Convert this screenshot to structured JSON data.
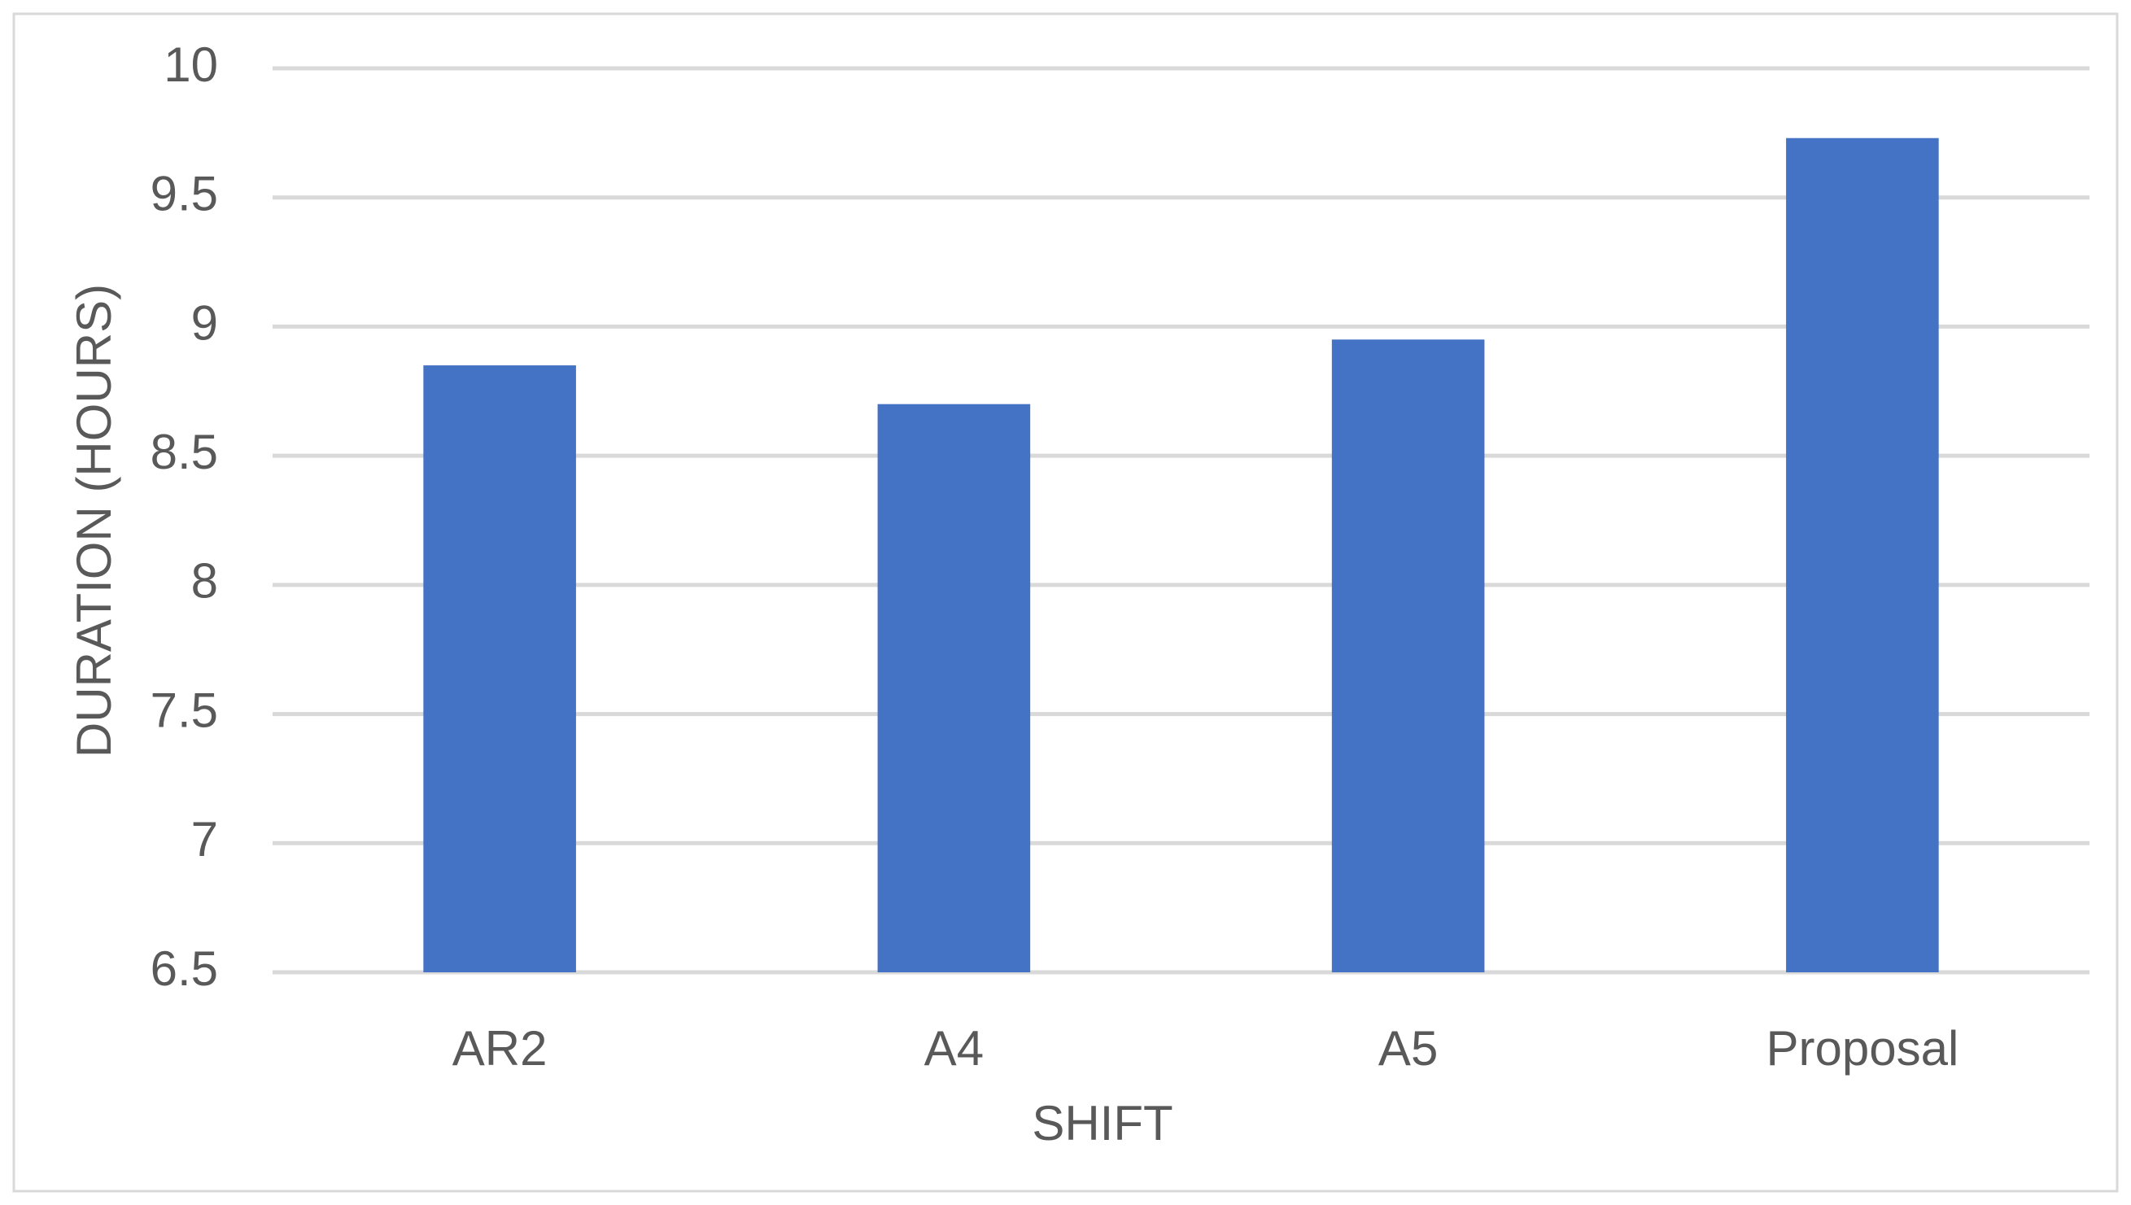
{
  "chart_data": {
    "type": "bar",
    "x_label": "SHIFT",
    "y_label": "DURATION (HOURS)",
    "categories": [
      "AR2",
      "A4",
      "A5",
      "Proposal"
    ],
    "values": [
      8.85,
      8.7,
      8.95,
      9.73
    ],
    "color": "#4472c4",
    "ylim": [
      6.5,
      10
    ],
    "yticks": [
      6.5,
      7,
      7.5,
      8,
      8.5,
      9,
      9.5,
      10
    ],
    "grid": true
  }
}
